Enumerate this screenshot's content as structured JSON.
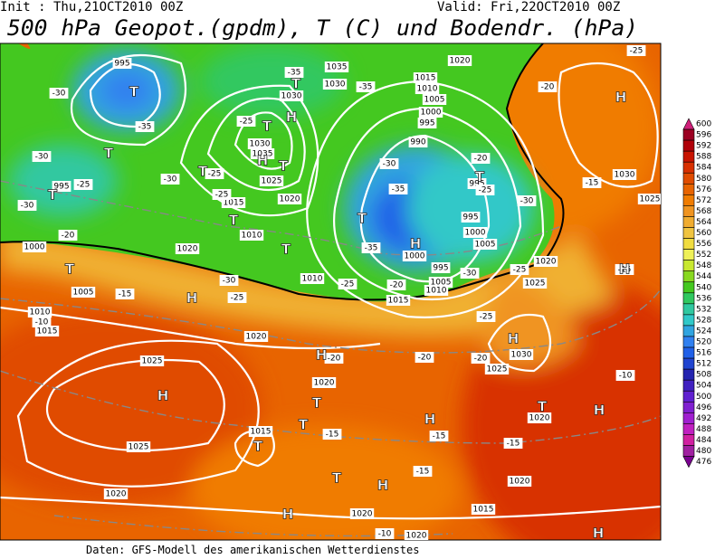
{
  "header": {
    "init": "Init : Thu,21OCT2010 00Z",
    "valid": "Valid: Fri,22OCT2010 00Z",
    "title": "500 hPa Geopot.(gpdm), T (C) und Bodendr. (hPa)"
  },
  "footer": "Daten: GFS-Modell des amerikanischen Wetterdienstes",
  "colorbar": {
    "labels": [
      600,
      596,
      592,
      588,
      584,
      580,
      576,
      572,
      568,
      564,
      560,
      556,
      552,
      548,
      544,
      540,
      536,
      532,
      528,
      524,
      520,
      516,
      512,
      508,
      504,
      500,
      496,
      492,
      488,
      484,
      480,
      476
    ],
    "colors": [
      "#d0207a",
      "#9c0022",
      "#b00008",
      "#c81400",
      "#d83000",
      "#e04c00",
      "#e86400",
      "#f07c00",
      "#f09420",
      "#f0ac30",
      "#f0c440",
      "#f0dc40",
      "#eef058",
      "#c8e830",
      "#88d820",
      "#44c820",
      "#30c860",
      "#30c8a0",
      "#30c8c8",
      "#30a4e0",
      "#3080f0",
      "#2060e8",
      "#2044d0",
      "#2424b0",
      "#4020c0",
      "#6020d0",
      "#8020d0",
      "#a020d0",
      "#c020c0",
      "#d020a0",
      "#a020a0",
      "#7a0090"
    ]
  },
  "map": {
    "isobar_labels": [
      "995",
      "1035",
      "1020",
      "1030",
      "1030",
      "1015",
      "1010",
      "1005",
      "1000",
      "995",
      "990",
      "1030",
      "1035",
      "1025",
      "1020",
      "1015",
      "1010",
      "995",
      "995",
      "995",
      "1000",
      "1005",
      "1000",
      "995",
      "1005",
      "1010",
      "1030",
      "1025",
      "1000",
      "1005",
      "1010",
      "1015",
      "1020",
      "1010",
      "1015",
      "1025",
      "1020",
      "1020",
      "1025",
      "1020",
      "1030",
      "1025",
      "1020",
      "1015",
      "1025",
      "1020",
      "1020",
      "1020",
      "1015",
      "1020"
    ],
    "temperature_labels": [
      "-35",
      "-35",
      "-30",
      "-35",
      "-25",
      "-30",
      "-25",
      "-30",
      "-25",
      "-30",
      "-30",
      "-25",
      "-35",
      "-25",
      "-30",
      "-20",
      "-35",
      "-20",
      "-20",
      "-25",
      "-15",
      "-30",
      "-25",
      "-15",
      "-15",
      "-25",
      "-20",
      "-30",
      "-25",
      "-25",
      "-20",
      "-20",
      "-20",
      "-10",
      "-15",
      "-15",
      "-15",
      "-15",
      "-10",
      "-10"
    ],
    "centers": [
      "T",
      "T",
      "H",
      "T",
      "T",
      "H",
      "T",
      "T",
      "T",
      "T",
      "T",
      "T",
      "H",
      "T",
      "H",
      "T",
      "H",
      "H",
      "H",
      "H",
      "H",
      "T",
      "T",
      "H",
      "H",
      "T",
      "T",
      "H",
      "H",
      "H",
      "T"
    ]
  }
}
